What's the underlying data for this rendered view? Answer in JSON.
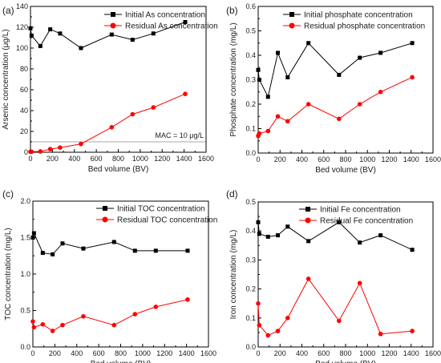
{
  "chart_data": [
    {
      "type": "line",
      "panel_label": "(a)",
      "xlabel": "Bed volume (BV)",
      "ylabel": "Arsenic concentration (μg/L)",
      "xlim": [
        0,
        1600
      ],
      "ylim": [
        0,
        140
      ],
      "xticks": [
        0,
        200,
        400,
        600,
        800,
        1000,
        1200,
        1400,
        1600
      ],
      "yticks": [
        0,
        20,
        40,
        60,
        80,
        100,
        120,
        140
      ],
      "legend_position": "top",
      "grid": false,
      "series": [
        {
          "name": "Initial As concentration",
          "marker": "square",
          "color": "#000000",
          "x": [
            0,
            10,
            90,
            180,
            270,
            460,
            740,
            930,
            1120,
            1410
          ],
          "y": [
            119,
            112,
            102,
            118,
            114,
            100,
            113,
            108,
            114,
            125
          ]
        },
        {
          "name": "Residual As concentration",
          "marker": "circle",
          "color": "#ff0000",
          "x": [
            0,
            10,
            90,
            180,
            270,
            460,
            740,
            930,
            1120,
            1410
          ],
          "y": [
            0.5,
            0.5,
            0.8,
            3,
            4.5,
            8,
            24,
            36.5,
            43,
            56
          ]
        }
      ],
      "reference_line": {
        "label": "MAC = 10 μg/L",
        "y": 10,
        "color": "#aaaaaa"
      }
    },
    {
      "type": "line",
      "panel_label": "(b)",
      "xlabel": "Bed volume (BV)",
      "ylabel": "Phosphate concentration (mg/L)",
      "xlim": [
        0,
        1600
      ],
      "ylim": [
        0,
        0.6
      ],
      "xticks": [
        0,
        200,
        400,
        600,
        800,
        1000,
        1200,
        1400,
        1600
      ],
      "yticks": [
        0.0,
        0.1,
        0.2,
        0.3,
        0.4,
        0.5,
        0.6
      ],
      "legend_position": "top",
      "grid": false,
      "series": [
        {
          "name": "Initial phosphate concentration",
          "marker": "square",
          "color": "#000000",
          "x": [
            0,
            10,
            90,
            180,
            270,
            460,
            740,
            930,
            1120,
            1410
          ],
          "y": [
            0.34,
            0.3,
            0.23,
            0.41,
            0.31,
            0.45,
            0.32,
            0.39,
            0.41,
            0.45
          ]
        },
        {
          "name": "Residual phosphate concentration",
          "marker": "circle",
          "color": "#ff0000",
          "x": [
            0,
            10,
            90,
            180,
            270,
            460,
            740,
            930,
            1120,
            1410
          ],
          "y": [
            0.07,
            0.08,
            0.09,
            0.15,
            0.13,
            0.2,
            0.14,
            0.2,
            0.25,
            0.31
          ]
        }
      ]
    },
    {
      "type": "line",
      "panel_label": "(c)",
      "xlabel": "Bed volume (BV)",
      "ylabel": "TOC concentration (mg/L)",
      "xlim": [
        0,
        1600
      ],
      "ylim": [
        0,
        2.0
      ],
      "xticks": [
        0,
        200,
        400,
        600,
        800,
        1000,
        1200,
        1400,
        1600
      ],
      "yticks": [
        0.0,
        0.5,
        1.0,
        1.5,
        2.0
      ],
      "legend_position": "top",
      "grid": false,
      "series": [
        {
          "name": "Initial TOC concentration",
          "marker": "square",
          "color": "#000000",
          "x": [
            0,
            10,
            90,
            180,
            270,
            460,
            740,
            930,
            1120,
            1410
          ],
          "y": [
            1.5,
            1.56,
            1.29,
            1.27,
            1.42,
            1.35,
            1.44,
            1.32,
            1.32,
            1.32
          ]
        },
        {
          "name": "Residual TOC concentration",
          "marker": "circle",
          "color": "#ff0000",
          "x": [
            0,
            10,
            90,
            180,
            270,
            460,
            740,
            930,
            1120,
            1410
          ],
          "y": [
            0.35,
            0.27,
            0.31,
            0.22,
            0.3,
            0.42,
            0.3,
            0.45,
            0.55,
            0.65
          ]
        }
      ]
    },
    {
      "type": "line",
      "panel_label": "(d)",
      "xlabel": "Bed volume (BV)",
      "ylabel": "Iron concentration (mg/L)",
      "xlim": [
        0,
        1600
      ],
      "ylim": [
        0,
        0.5
      ],
      "xticks": [
        0,
        200,
        400,
        600,
        800,
        1000,
        1200,
        1400,
        1600
      ],
      "yticks": [
        0.0,
        0.1,
        0.2,
        0.3,
        0.4,
        0.5
      ],
      "legend_position": "top",
      "grid": false,
      "series": [
        {
          "name": "Initial Fe concentration",
          "marker": "square",
          "color": "#000000",
          "x": [
            0,
            10,
            90,
            180,
            270,
            460,
            740,
            930,
            1120,
            1410
          ],
          "y": [
            0.43,
            0.39,
            0.38,
            0.385,
            0.415,
            0.365,
            0.43,
            0.36,
            0.385,
            0.335
          ]
        },
        {
          "name": "Residual Fe concentration",
          "marker": "circle",
          "color": "#ff0000",
          "x": [
            0,
            10,
            90,
            180,
            270,
            460,
            740,
            930,
            1120,
            1410
          ],
          "y": [
            0.15,
            0.075,
            0.04,
            0.055,
            0.1,
            0.235,
            0.09,
            0.22,
            0.045,
            0.055
          ]
        }
      ]
    }
  ]
}
